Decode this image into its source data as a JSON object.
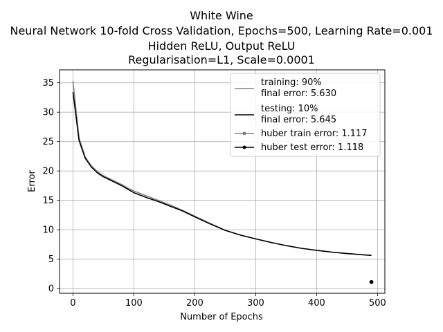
{
  "chart_data": {
    "type": "line",
    "title_lines": [
      "White Wine",
      "Neural Network 10-fold Cross Validation, Epochs=500, Learning Rate=0.001",
      "Hidden ReLU, Output ReLU",
      "Regularisation=L1, Scale=0.0001"
    ],
    "xlabel": "Number of Epochs",
    "ylabel": "Error",
    "xlim": [
      -22,
      512
    ],
    "ylim": [
      -0.8,
      37.2
    ],
    "xticks": [
      0,
      100,
      200,
      300,
      400,
      500
    ],
    "yticks": [
      0,
      5,
      10,
      15,
      20,
      25,
      30,
      35
    ],
    "grid": true,
    "legend_position": "upper right",
    "series": [
      {
        "name": "training: 90%\nfinal error: 5.630",
        "legend_lines": [
          "training: 90%",
          "final error: 5.630"
        ],
        "color": "#808080",
        "marker": "none",
        "x": [
          0,
          10,
          20,
          30,
          40,
          50,
          60,
          70,
          80,
          90,
          100,
          120,
          140,
          160,
          180,
          200,
          225,
          250,
          275,
          300,
          325,
          350,
          375,
          400,
          425,
          450,
          475,
          490
        ],
        "y": [
          35.3,
          25.6,
          22.4,
          20.9,
          19.9,
          19.2,
          18.7,
          18.2,
          17.7,
          17.1,
          16.6,
          15.8,
          15.0,
          14.2,
          13.3,
          12.3,
          11.1,
          9.9,
          9.1,
          8.45,
          7.85,
          7.3,
          6.85,
          6.5,
          6.2,
          5.95,
          5.75,
          5.63
        ]
      },
      {
        "name": "testing: 10%\nfinal error: 5.645",
        "legend_lines": [
          "testing: 10%",
          "final error: 5.645"
        ],
        "color": "#000000",
        "marker": "none",
        "x": [
          0,
          10,
          20,
          30,
          40,
          50,
          60,
          70,
          80,
          90,
          100,
          120,
          140,
          160,
          180,
          200,
          225,
          250,
          275,
          300,
          325,
          350,
          375,
          400,
          425,
          450,
          475,
          490
        ],
        "y": [
          33.4,
          25.2,
          22.2,
          20.7,
          19.7,
          19.0,
          18.5,
          18.0,
          17.5,
          16.9,
          16.3,
          15.5,
          14.8,
          14.0,
          13.2,
          12.2,
          11.0,
          9.9,
          9.1,
          8.45,
          7.85,
          7.3,
          6.85,
          6.5,
          6.2,
          5.95,
          5.75,
          5.645
        ]
      },
      {
        "name": "huber train error: 1.117",
        "legend_lines": [
          "huber train error: 1.117"
        ],
        "color": "#808080",
        "marker": "dot",
        "x": [
          490
        ],
        "y": [
          1.117
        ]
      },
      {
        "name": "huber test error: 1.118",
        "legend_lines": [
          "huber test error: 1.118"
        ],
        "color": "#000000",
        "marker": "dot",
        "x": [
          490
        ],
        "y": [
          1.118
        ]
      }
    ]
  }
}
